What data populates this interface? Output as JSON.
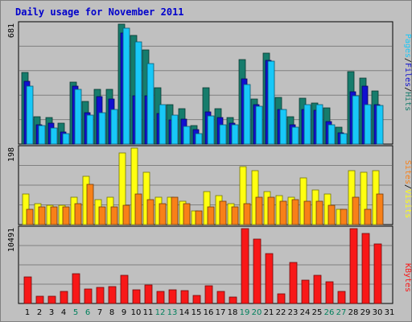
{
  "title": "Daily usage for November 2011",
  "colors": {
    "hits": "#167c6c",
    "files": "#1010d0",
    "pages": "#18c8f8",
    "visits": "#ffff10",
    "sites": "#f88018",
    "kbytes": "#f81818",
    "weekend_label": "#00805c",
    "weekday_label": "#000000",
    "title": "#0000cc"
  },
  "chart_data": [
    {
      "type": "bar",
      "panel": "hits-files-pages",
      "ymax_label": "681",
      "ylim": [
        0,
        681
      ],
      "legend": [
        "Pages",
        "Files",
        "Hits"
      ],
      "categories": [
        "1",
        "2",
        "3",
        "4",
        "5",
        "6",
        "7",
        "8",
        "9",
        "10",
        "11",
        "12",
        "13",
        "14",
        "15",
        "16",
        "17",
        "18",
        "19",
        "20",
        "21",
        "22",
        "23",
        "24",
        "25",
        "26",
        "27",
        "28",
        "29",
        "30",
        "31"
      ],
      "weekend_days": [
        "5",
        "6",
        "12",
        "13",
        "19",
        "20",
        "26",
        "27"
      ],
      "series": [
        {
          "name": "Hits",
          "values": [
            405,
            155,
            150,
            120,
            350,
            240,
            310,
            310,
            681,
            615,
            535,
            320,
            225,
            200,
            105,
            320,
            200,
            150,
            480,
            255,
            515,
            265,
            155,
            260,
            235,
            205,
            95,
            410,
            375,
            300,
            0
          ]
        },
        {
          "name": "Files",
          "values": [
            355,
            110,
            120,
            70,
            330,
            180,
            270,
            255,
            630,
            275,
            275,
            175,
            135,
            140,
            80,
            185,
            150,
            120,
            370,
            225,
            475,
            195,
            110,
            195,
            190,
            130,
            65,
            295,
            330,
            225,
            0
          ]
        },
        {
          "name": "Pages",
          "values": [
            330,
            105,
            90,
            60,
            310,
            165,
            180,
            195,
            660,
            580,
            455,
            225,
            165,
            100,
            60,
            160,
            110,
            110,
            340,
            215,
            470,
            195,
            95,
            225,
            225,
            110,
            60,
            275,
            225,
            220,
            0
          ]
        }
      ]
    },
    {
      "type": "bar",
      "panel": "visits-sites",
      "ymax_label": "198",
      "ylim": [
        0,
        198
      ],
      "legend": [
        "Sites",
        "Visits"
      ],
      "categories": [
        "1",
        "2",
        "3",
        "4",
        "5",
        "6",
        "7",
        "8",
        "9",
        "10",
        "11",
        "12",
        "13",
        "14",
        "15",
        "16",
        "17",
        "18",
        "19",
        "20",
        "21",
        "22",
        "23",
        "24",
        "25",
        "26",
        "27",
        "28",
        "29",
        "30",
        "31"
      ],
      "series": [
        {
          "name": "Visits",
          "values": [
            80,
            55,
            50,
            50,
            70,
            125,
            65,
            70,
            185,
            198,
            135,
            70,
            70,
            60,
            35,
            85,
            75,
            55,
            150,
            140,
            85,
            75,
            70,
            120,
            90,
            80,
            40,
            140,
            135,
            140,
            0
          ]
        },
        {
          "name": "Sites",
          "values": [
            40,
            45,
            45,
            45,
            55,
            105,
            45,
            45,
            50,
            80,
            65,
            55,
            70,
            55,
            35,
            45,
            60,
            45,
            55,
            70,
            70,
            60,
            65,
            60,
            60,
            50,
            40,
            70,
            40,
            80,
            0
          ]
        }
      ]
    },
    {
      "type": "bar",
      "panel": "kbytes",
      "ymax_label": "10491",
      "ylim": [
        0,
        10491
      ],
      "legend": [
        "KBytes"
      ],
      "categories": [
        "1",
        "2",
        "3",
        "4",
        "5",
        "6",
        "7",
        "8",
        "9",
        "10",
        "11",
        "12",
        "13",
        "14",
        "15",
        "16",
        "17",
        "18",
        "19",
        "20",
        "21",
        "22",
        "23",
        "24",
        "25",
        "26",
        "27",
        "28",
        "29",
        "30",
        "31"
      ],
      "series": [
        {
          "name": "KBytes",
          "values": [
            3700,
            1050,
            1050,
            1680,
            4150,
            2050,
            2250,
            2350,
            3950,
            1880,
            2570,
            1650,
            1880,
            1780,
            1130,
            2470,
            1680,
            850,
            10491,
            8980,
            6990,
            1370,
            5750,
            3300,
            4000,
            3090,
            1680,
            10491,
            9800,
            8300,
            0
          ]
        }
      ]
    }
  ]
}
